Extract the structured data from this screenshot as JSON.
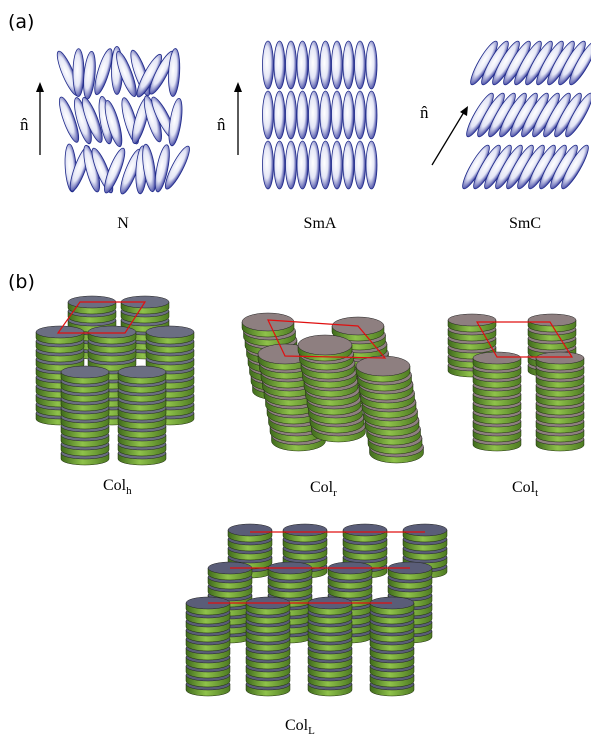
{
  "panels": [
    {
      "label": "(a)",
      "phases": [
        {
          "name": "N",
          "director": "n̂"
        },
        {
          "name": "SmA",
          "director": "n̂"
        },
        {
          "name": "SmC",
          "director": "n̂"
        }
      ]
    },
    {
      "label": "(b)",
      "phases": [
        {
          "name": "Col",
          "subscript": "h"
        },
        {
          "name": "Col",
          "subscript": "r"
        },
        {
          "name": "Col",
          "subscript": "t"
        },
        {
          "name": "Col",
          "subscript": "L"
        }
      ]
    }
  ]
}
